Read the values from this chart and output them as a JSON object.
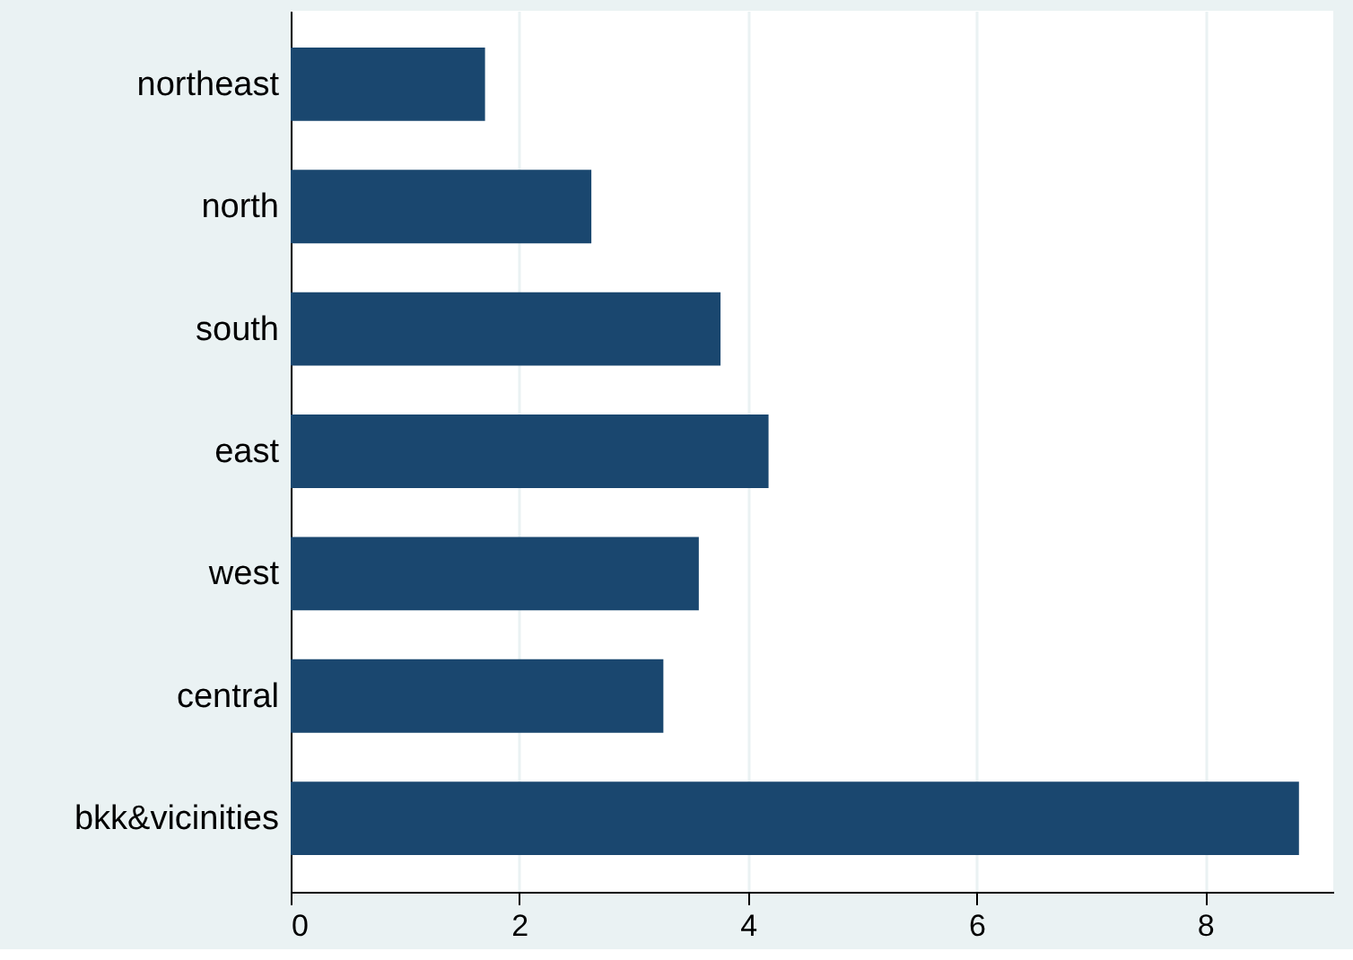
{
  "chart_data": {
    "type": "bar",
    "orientation": "horizontal",
    "categories": [
      "northeast",
      "north",
      "south",
      "east",
      "west",
      "central",
      "bkk&vicinities"
    ],
    "values": [
      1.7,
      2.63,
      3.76,
      4.18,
      3.57,
      3.26,
      8.82
    ],
    "color": "#1a476f",
    "xlim": [
      0,
      9.12
    ],
    "xticks": [
      0,
      2,
      4,
      6,
      8
    ],
    "grid": "x"
  }
}
